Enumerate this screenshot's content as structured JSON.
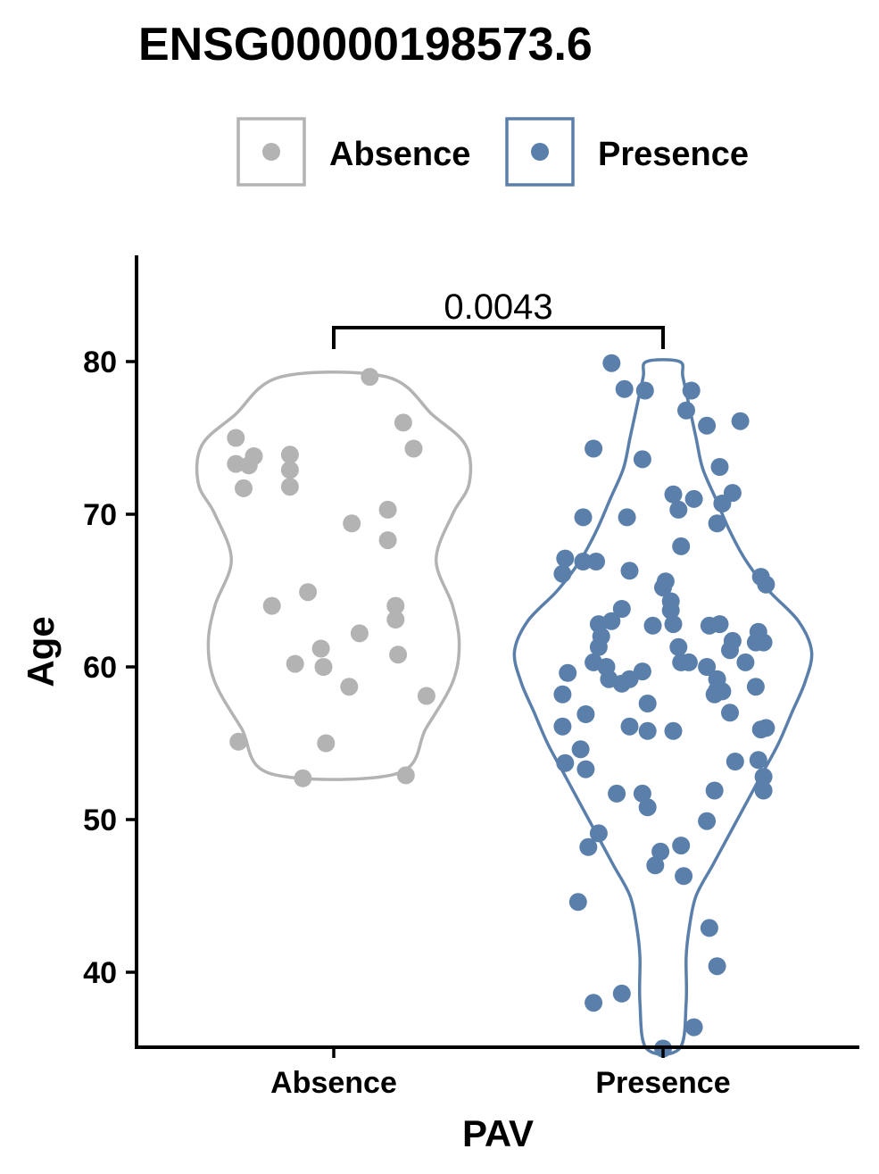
{
  "chart_data": {
    "type": "scatter",
    "subtype": "violin with jittered points",
    "title": "ENSG00000198573.6",
    "xlabel": "PAV",
    "ylabel": "Age",
    "categories": [
      "Absence",
      "Presence"
    ],
    "yticks": [
      40,
      50,
      60,
      70,
      80
    ],
    "ylim": [
      35,
      86
    ],
    "legend": {
      "position": "top",
      "entries": [
        "Absence",
        "Presence"
      ]
    },
    "colors": {
      "Absence": "#b3b3b3",
      "Presence": "#5a7fab",
      "axis": "#000000"
    },
    "significance": {
      "label": "0.0043",
      "groups": [
        "Absence",
        "Presence"
      ]
    },
    "grid": false,
    "series": [
      {
        "name": "Absence",
        "points": [
          [
            -0.38,
            75.0
          ],
          [
            -0.38,
            73.3
          ],
          [
            -0.33,
            73.2
          ],
          [
            -0.31,
            73.8
          ],
          [
            -0.35,
            71.7
          ],
          [
            -0.17,
            73.9
          ],
          [
            -0.17,
            72.9
          ],
          [
            -0.17,
            71.8
          ],
          [
            0.14,
            79.0
          ],
          [
            0.27,
            76.0
          ],
          [
            0.31,
            74.3
          ],
          [
            0.07,
            69.4
          ],
          [
            0.21,
            70.3
          ],
          [
            0.21,
            68.3
          ],
          [
            -0.24,
            64.0
          ],
          [
            -0.1,
            64.9
          ],
          [
            0.24,
            64.0
          ],
          [
            0.24,
            63.1
          ],
          [
            0.1,
            62.2
          ],
          [
            -0.05,
            61.2
          ],
          [
            -0.15,
            60.2
          ],
          [
            -0.04,
            60.0
          ],
          [
            0.25,
            60.8
          ],
          [
            0.06,
            58.7
          ],
          [
            0.36,
            58.1
          ],
          [
            -0.37,
            55.1
          ],
          [
            -0.03,
            55.0
          ],
          [
            -0.12,
            52.7
          ],
          [
            0.28,
            52.9
          ]
        ],
        "violin": [
          [
            53.0,
            0.19
          ],
          [
            56.0,
            0.28
          ],
          [
            59.0,
            0.36
          ],
          [
            61.5,
            0.38
          ],
          [
            64.0,
            0.36
          ],
          [
            67.0,
            0.31
          ],
          [
            70.0,
            0.36
          ],
          [
            72.0,
            0.41
          ],
          [
            74.5,
            0.4
          ],
          [
            76.5,
            0.3
          ],
          [
            79.0,
            0.16
          ]
        ]
      },
      {
        "name": "Presence",
        "points": [
          [
            -0.2,
            79.9
          ],
          [
            -0.15,
            78.2
          ],
          [
            -0.07,
            78.1
          ],
          [
            0.11,
            78.1
          ],
          [
            0.09,
            76.8
          ],
          [
            0.17,
            75.8
          ],
          [
            0.3,
            76.1
          ],
          [
            -0.27,
            74.3
          ],
          [
            -0.08,
            73.6
          ],
          [
            0.22,
            73.1
          ],
          [
            0.04,
            71.3
          ],
          [
            0.06,
            70.3
          ],
          [
            0.12,
            71.0
          ],
          [
            0.23,
            70.7
          ],
          [
            0.27,
            71.4
          ],
          [
            -0.31,
            69.8
          ],
          [
            -0.14,
            69.8
          ],
          [
            0.21,
            69.4
          ],
          [
            0.07,
            67.9
          ],
          [
            -0.38,
            67.1
          ],
          [
            -0.31,
            66.9
          ],
          [
            -0.26,
            66.9
          ],
          [
            -0.13,
            66.3
          ],
          [
            -0.39,
            66.1
          ],
          [
            0.01,
            65.6
          ],
          [
            0.0,
            65.2
          ],
          [
            0.03,
            64.3
          ],
          [
            0.03,
            63.7
          ],
          [
            0.38,
            65.9
          ],
          [
            0.4,
            65.4
          ],
          [
            -0.16,
            63.8
          ],
          [
            -0.25,
            62.8
          ],
          [
            -0.2,
            63.0
          ],
          [
            -0.04,
            62.7
          ],
          [
            0.04,
            62.8
          ],
          [
            0.18,
            62.7
          ],
          [
            0.22,
            62.8
          ],
          [
            -0.24,
            62.0
          ],
          [
            -0.25,
            61.3
          ],
          [
            0.26,
            61.1
          ],
          [
            0.27,
            61.7
          ],
          [
            0.36,
            61.6
          ],
          [
            0.37,
            62.3
          ],
          [
            0.39,
            61.6
          ],
          [
            -0.27,
            60.3
          ],
          [
            -0.22,
            60.0
          ],
          [
            -0.08,
            59.7
          ],
          [
            0.06,
            61.3
          ],
          [
            0.07,
            60.3
          ],
          [
            0.1,
            60.3
          ],
          [
            0.17,
            60.0
          ],
          [
            0.32,
            60.3
          ],
          [
            -0.37,
            59.6
          ],
          [
            -0.21,
            59.2
          ],
          [
            -0.16,
            58.9
          ],
          [
            -0.13,
            59.2
          ],
          [
            -0.06,
            57.6
          ],
          [
            0.21,
            59.2
          ],
          [
            0.21,
            58.5
          ],
          [
            0.2,
            58.2
          ],
          [
            0.23,
            58.4
          ],
          [
            0.36,
            58.7
          ],
          [
            -0.39,
            58.2
          ],
          [
            -0.39,
            56.1
          ],
          [
            -0.3,
            56.9
          ],
          [
            -0.13,
            56.1
          ],
          [
            -0.06,
            55.8
          ],
          [
            0.04,
            55.8
          ],
          [
            0.26,
            57.0
          ],
          [
            0.38,
            55.9
          ],
          [
            0.4,
            56.0
          ],
          [
            -0.32,
            54.6
          ],
          [
            -0.38,
            53.7
          ],
          [
            -0.3,
            53.3
          ],
          [
            0.28,
            53.8
          ],
          [
            0.37,
            53.9
          ],
          [
            0.39,
            52.8
          ],
          [
            0.39,
            51.9
          ],
          [
            -0.18,
            51.7
          ],
          [
            -0.08,
            51.7
          ],
          [
            -0.06,
            50.8
          ],
          [
            0.2,
            51.9
          ],
          [
            0.17,
            49.9
          ],
          [
            -0.25,
            49.1
          ],
          [
            -0.29,
            48.2
          ],
          [
            0.07,
            48.3
          ],
          [
            -0.01,
            47.9
          ],
          [
            -0.03,
            47.0
          ],
          [
            0.08,
            46.3
          ],
          [
            -0.33,
            44.6
          ],
          [
            0.18,
            42.9
          ],
          [
            0.21,
            40.4
          ],
          [
            -0.16,
            38.6
          ],
          [
            -0.27,
            38.0
          ],
          [
            0.12,
            36.4
          ],
          [
            0.0,
            35.0
          ]
        ],
        "violin": [
          [
            35.0,
            0.05
          ],
          [
            38.0,
            0.07
          ],
          [
            41.0,
            0.07
          ],
          [
            43.0,
            0.08
          ],
          [
            45.0,
            0.1
          ],
          [
            47.0,
            0.15
          ],
          [
            49.0,
            0.2
          ],
          [
            51.0,
            0.25
          ],
          [
            53.0,
            0.3
          ],
          [
            55.0,
            0.35
          ],
          [
            57.0,
            0.39
          ],
          [
            59.0,
            0.43
          ],
          [
            61.0,
            0.45
          ],
          [
            63.0,
            0.41
          ],
          [
            65.0,
            0.32
          ],
          [
            67.0,
            0.25
          ],
          [
            69.0,
            0.2
          ],
          [
            71.0,
            0.16
          ],
          [
            73.0,
            0.12
          ],
          [
            75.0,
            0.1
          ],
          [
            77.0,
            0.08
          ],
          [
            79.0,
            0.06
          ],
          [
            80.0,
            0.05
          ]
        ]
      }
    ]
  }
}
